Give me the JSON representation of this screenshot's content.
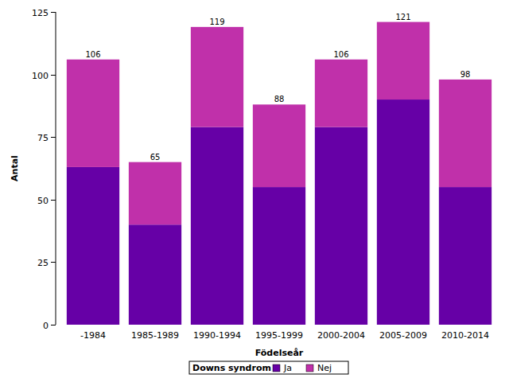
{
  "chart_data": {
    "type": "bar",
    "stacked": true,
    "x_label": "Födelseår",
    "y_label": "Antal",
    "legend_title": "Downs syndrom",
    "legend": "bottom",
    "categories": [
      "-1984",
      "1985-1989",
      "1990-1994",
      "1995-1999",
      "2000-2004",
      "2005-2009",
      "2010-2014"
    ],
    "series": [
      {
        "name": "Ja",
        "color": "#6600a6",
        "values": [
          63,
          40,
          79,
          55,
          79,
          90,
          55
        ]
      },
      {
        "name": "Nej",
        "color": "#c030aa",
        "values": [
          43,
          25,
          40,
          33,
          27,
          31,
          43
        ]
      }
    ],
    "totals": [
      106,
      65,
      119,
      88,
      106,
      121,
      98
    ],
    "ylim": [
      0,
      125
    ],
    "yticks": [
      0,
      25,
      50,
      75,
      100,
      125
    ],
    "grid": false
  }
}
